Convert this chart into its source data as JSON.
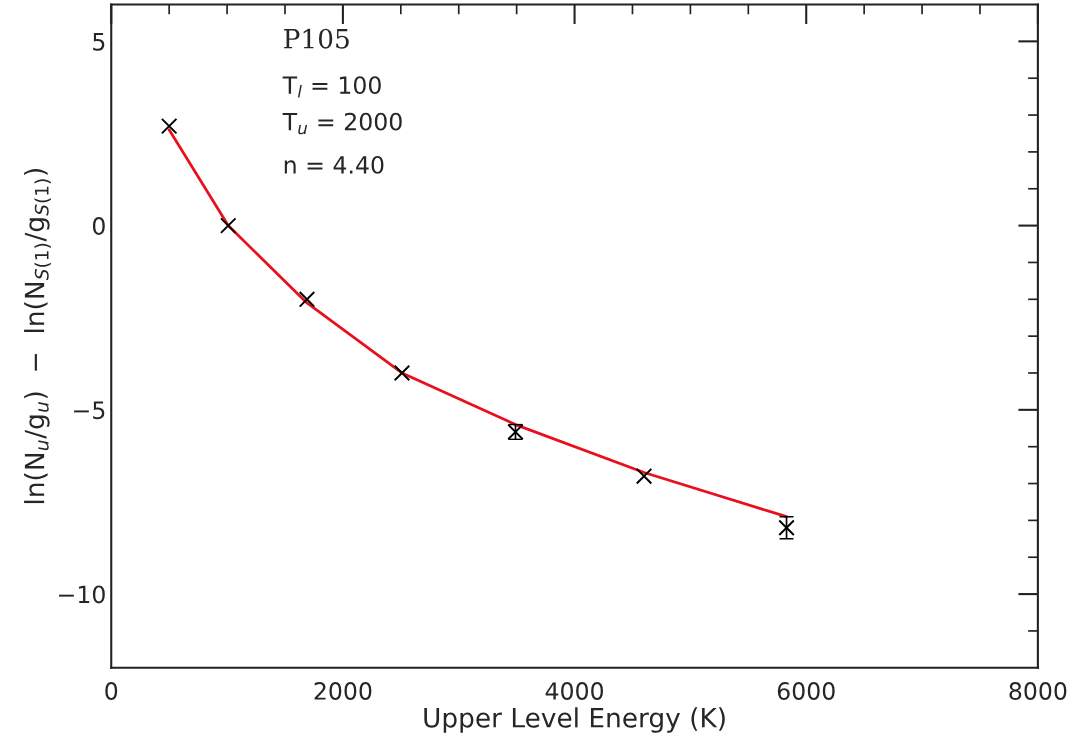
{
  "chart_data": {
    "type": "scatter",
    "xlabel": "Upper Level Energy (K)",
    "ylabel": "ln(N$_{u}$/g$_{u}$)  −  ln(N$_{S(1)}$/g$_{S(1)}$)",
    "annotations": [
      "P105",
      "T$_{l}$ = 100",
      "T$_{u}$ = 2000",
      "n = 4.40"
    ],
    "series": [
      {
        "color": "#000000",
        "marker": "cross",
        "x": [
          500,
          1010,
          1690,
          2510,
          3490,
          4600,
          5830
        ],
        "values": [
          2.7,
          0.0,
          -2.0,
          -4.0,
          -5.6,
          -6.8,
          -8.2
        ],
        "errors": [
          null,
          null,
          null,
          null,
          0.2,
          null,
          0.3
        ]
      },
      {
        "type": "line",
        "color": "#e8101e",
        "line_style": "solid",
        "x": [
          500,
          1010,
          1690,
          2510,
          3490,
          4600,
          5830
        ],
        "values": [
          2.6,
          0.0,
          -2.1,
          -4.0,
          -5.4,
          -6.7,
          -7.9
        ]
      }
    ],
    "xlim": [
      0,
      8000
    ],
    "xticks": [
      0,
      {
        "value": 500,
        "label": null
      },
      {
        "value": 1000,
        "label": null
      },
      {
        "value": 1500,
        "label": null
      },
      2000,
      {
        "value": 2500,
        "label": null
      },
      {
        "value": 3000,
        "label": null
      },
      {
        "value": 3500,
        "label": null
      },
      4000,
      {
        "value": 4500,
        "label": null
      },
      {
        "value": 5000,
        "label": null
      },
      {
        "value": 5500,
        "label": null
      },
      6000,
      {
        "value": 6500,
        "label": null
      },
      {
        "value": 7000,
        "label": null
      },
      {
        "value": 7500,
        "label": null
      },
      8000
    ],
    "ylim": [
      -12,
      6
    ],
    "yticks": [
      {
        "value": -11,
        "label": null
      },
      {
        "value": -10,
        "label": "−10"
      },
      {
        "value": -9,
        "label": null
      },
      {
        "value": -8,
        "label": null
      },
      {
        "value": -7,
        "label": null
      },
      {
        "value": -6,
        "label": null
      },
      {
        "value": -5,
        "label": "−5"
      },
      {
        "value": -4,
        "label": null
      },
      {
        "value": -3,
        "label": null
      },
      {
        "value": -2,
        "label": null
      },
      {
        "value": -1,
        "label": null
      },
      0,
      {
        "value": 1,
        "label": null
      },
      {
        "value": 2,
        "label": null
      },
      {
        "value": 3,
        "label": null
      },
      {
        "value": 4,
        "label": null
      },
      5
    ],
    "grid": false,
    "legend": false
  }
}
